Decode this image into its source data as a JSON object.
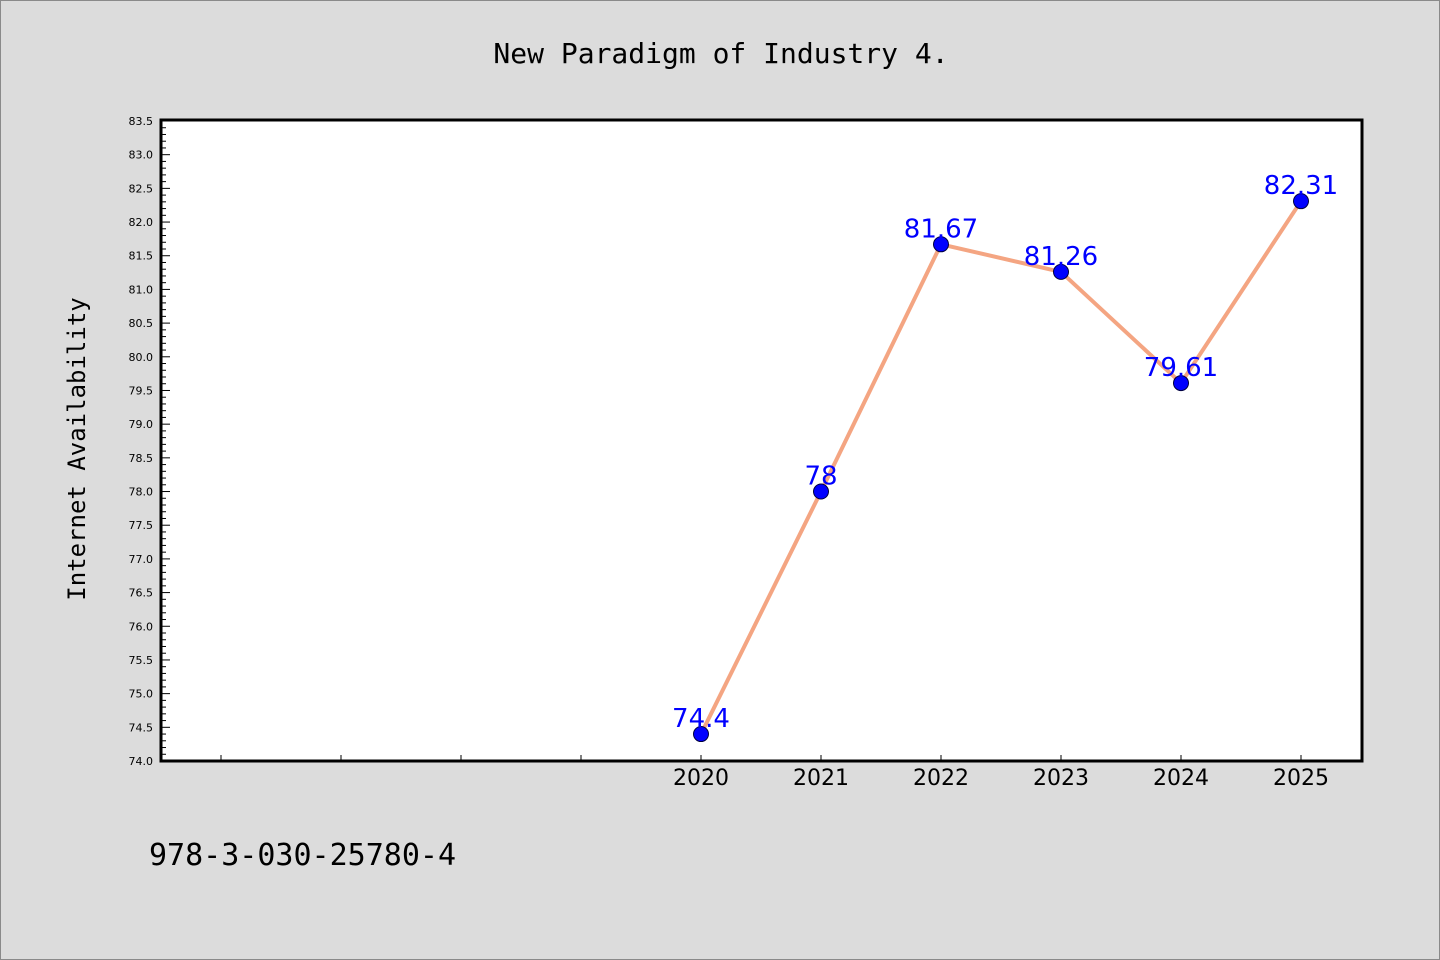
{
  "chart_data": {
    "type": "line",
    "title": "New Paradigm of Industry 4.",
    "xlabel": "",
    "ylabel": "Internet Availability",
    "ylim": [
      74.0,
      83.5
    ],
    "yticks": [
      "74.0",
      "74.5",
      "75.0",
      "75.5",
      "76.0",
      "76.5",
      "77.0",
      "77.5",
      "78.0",
      "78.5",
      "79.0",
      "79.5",
      "80.0",
      "80.5",
      "81.0",
      "81.5",
      "82.0",
      "82.5",
      "83.0",
      "83.5"
    ],
    "x_unlabeled_slots": 4,
    "categories": [
      "2020",
      "2021",
      "2022",
      "2023",
      "2024",
      "2025"
    ],
    "series": [
      {
        "values": [
          74.4,
          78,
          81.67,
          81.26,
          79.61,
          82.31
        ],
        "labels": [
          "74.4",
          "78",
          "81.67",
          "81.26",
          "79.61",
          "82.31"
        ],
        "line_color": "#f4a582",
        "marker_color": "#0000ff",
        "label_color": "#0000ff"
      }
    ],
    "grid": false,
    "legend": "none"
  },
  "footer": {
    "isbn": "978-3-030-25780-4"
  },
  "colors": {
    "background": "#dcdcdc",
    "plot_background": "#ffffff",
    "axis": "#000000"
  }
}
